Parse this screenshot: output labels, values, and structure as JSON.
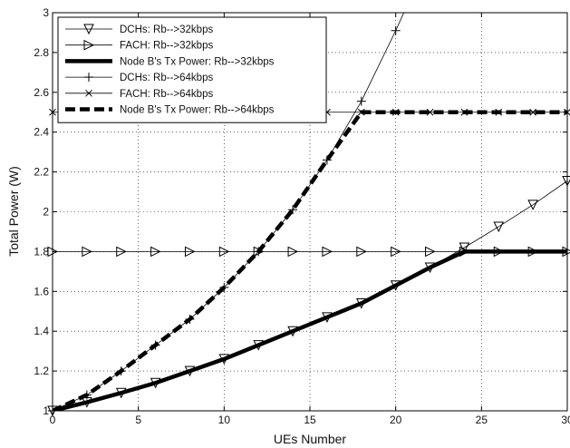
{
  "chart_data": {
    "type": "line",
    "xlabel": "UEs Number",
    "ylabel": "Total Power (W)",
    "xlim": [
      0,
      30
    ],
    "ylim": [
      1,
      3
    ],
    "xticks": [
      0,
      5,
      10,
      15,
      20,
      25,
      30
    ],
    "yticks": [
      1,
      1.2,
      1.4,
      1.6,
      1.8,
      2,
      2.2,
      2.4,
      2.6,
      2.8,
      3
    ],
    "grid": true,
    "legend_position": "top-left",
    "series": [
      {
        "name": "DCHs: Rb-->32kbps",
        "marker": "triangle-down",
        "line_style": "solid",
        "line_width": "thin",
        "x": [
          0,
          2,
          4,
          6,
          8,
          10,
          12,
          14,
          16,
          18,
          20,
          22,
          24,
          26,
          28,
          30
        ],
        "y": [
          1,
          1.043,
          1.09,
          1.14,
          1.2,
          1.26,
          1.33,
          1.4,
          1.47,
          1.54,
          1.63,
          1.72,
          1.82,
          1.925,
          2.035,
          2.155
        ]
      },
      {
        "name": "FACH: Rb-->32kbps",
        "marker": "triangle-right",
        "line_style": "solid",
        "line_width": "thin",
        "x": [
          0,
          2,
          4,
          6,
          8,
          10,
          12,
          14,
          16,
          18,
          20,
          22,
          24,
          26,
          28,
          30
        ],
        "y": [
          1.8,
          1.8,
          1.8,
          1.8,
          1.8,
          1.8,
          1.8,
          1.8,
          1.8,
          1.8,
          1.8,
          1.8,
          1.8,
          1.8,
          1.8,
          1.8
        ]
      },
      {
        "name": "Node B's Tx Power: Rb-->32kbps",
        "marker": "none",
        "line_style": "solid",
        "line_width": "thick",
        "x": [
          0,
          2,
          4,
          6,
          8,
          10,
          12,
          14,
          16,
          18,
          20,
          22,
          24,
          26,
          28,
          30
        ],
        "y": [
          1,
          1.043,
          1.09,
          1.14,
          1.2,
          1.26,
          1.33,
          1.4,
          1.47,
          1.54,
          1.63,
          1.72,
          1.8,
          1.8,
          1.8,
          1.8
        ]
      },
      {
        "name": "DCHs: Rb-->64kbps",
        "marker": "plus",
        "line_style": "solid",
        "line_width": "thin",
        "x": [
          0,
          2,
          4,
          6,
          8,
          10,
          12,
          14,
          16,
          18,
          20,
          21
        ],
        "y": [
          1,
          1.08,
          1.2,
          1.33,
          1.46,
          1.62,
          1.8,
          2.01,
          2.26,
          2.555,
          2.91,
          3.1
        ]
      },
      {
        "name": "FACH: Rb-->64kbps",
        "marker": "x",
        "line_style": "solid",
        "line_width": "thin",
        "x": [
          0,
          2,
          4,
          6,
          8,
          10,
          12,
          14,
          16,
          18,
          20,
          22,
          24,
          26,
          28,
          30
        ],
        "y": [
          2.5,
          2.5,
          2.5,
          2.5,
          2.5,
          2.5,
          2.5,
          2.5,
          2.5,
          2.5,
          2.5,
          2.5,
          2.5,
          2.5,
          2.5,
          2.5
        ]
      },
      {
        "name": "Node B's Tx Power: Rb-->64kbps",
        "marker": "none",
        "line_style": "dashed",
        "line_width": "thick",
        "x": [
          0,
          2,
          4,
          6,
          8,
          10,
          12,
          14,
          16,
          18,
          20,
          22,
          24,
          26,
          28,
          30
        ],
        "y": [
          1,
          1.08,
          1.2,
          1.33,
          1.46,
          1.62,
          1.8,
          2.01,
          2.26,
          2.5,
          2.5,
          2.5,
          2.5,
          2.5,
          2.5,
          2.5
        ]
      }
    ]
  }
}
